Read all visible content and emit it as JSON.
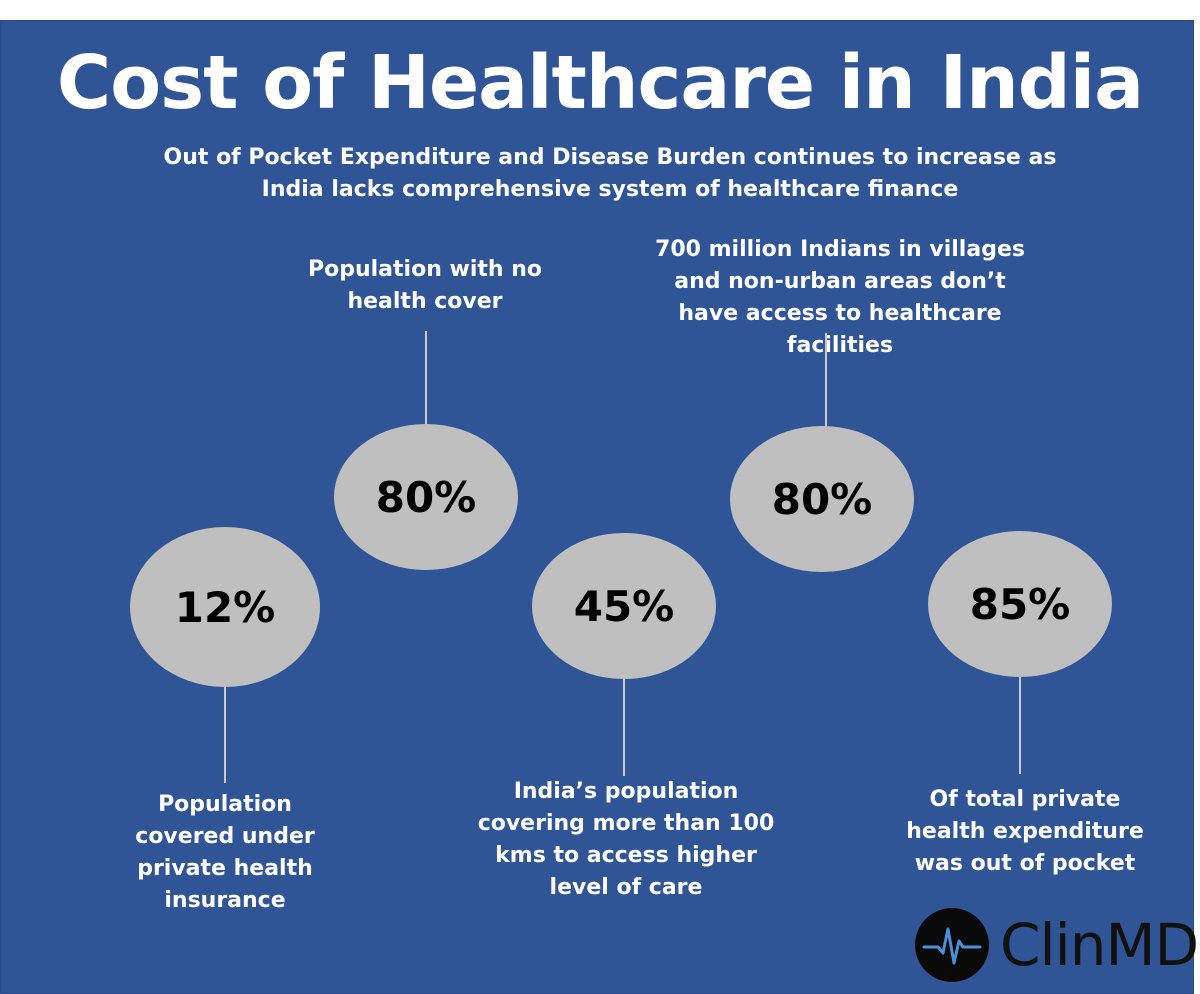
{
  "title": "Cost of Healthcare in India",
  "subtitle": "Out of Pocket Expenditure and Disease Burden continues to increase as India lacks comprehensive system of healthcare finance",
  "stats": [
    {
      "value": "12%",
      "caption": "Population covered under private health insurance"
    },
    {
      "value": "80%",
      "caption": "Population with no health cover"
    },
    {
      "value": "45%",
      "caption": "India’s population covering more than 100 kms to access higher level of care"
    },
    {
      "value": "80%",
      "caption": "700 million Indians in villages and non-urban areas don’t have access to healthcare facilities"
    },
    {
      "value": "85%",
      "caption": "Of total private health expenditure was out of pocket"
    }
  ],
  "colors": {
    "panel": "#2f5597",
    "bubble": "#bfbfbf",
    "text": "#ffffff",
    "value_text": "#000000"
  },
  "logo": {
    "text": "ClinMD",
    "icon": "heartbeat-icon"
  }
}
